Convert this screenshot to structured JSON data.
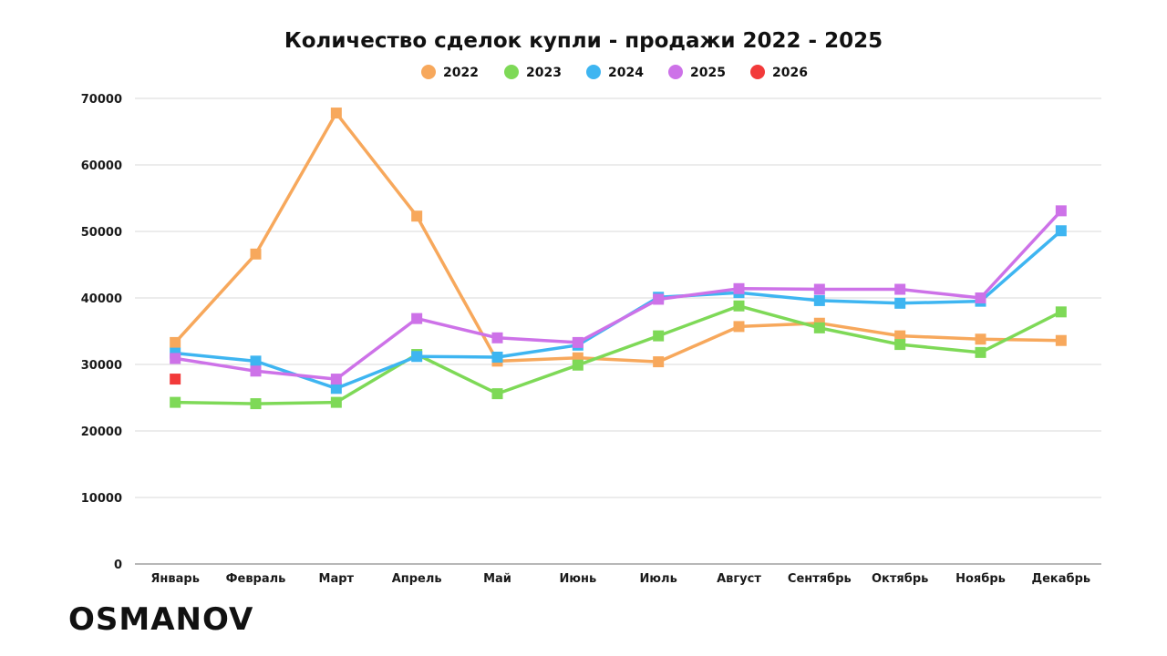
{
  "brand": "OSMANOV",
  "chart_data": {
    "type": "line",
    "title": "Количество сделок купли - продажи 2022 - 2025",
    "xlabel": "",
    "ylabel": "",
    "categories": [
      "Январь",
      "Февраль",
      "Март",
      "Апрель",
      "Май",
      "Июнь",
      "Июль",
      "Август",
      "Сентябрь",
      "Октябрь",
      "Ноябрь",
      "Декабрь"
    ],
    "ylim": [
      0,
      70000
    ],
    "yticks": [
      0,
      10000,
      20000,
      30000,
      40000,
      50000,
      60000,
      70000
    ],
    "grid": true,
    "legend_position": "top-center",
    "series": [
      {
        "name": "2022",
        "color": "#f7a85c",
        "values": [
          33300,
          46600,
          67800,
          52300,
          30500,
          31000,
          30400,
          35700,
          36200,
          34300,
          33800,
          33600
        ]
      },
      {
        "name": "2023",
        "color": "#7ed957",
        "values": [
          24300,
          24100,
          24300,
          31500,
          25600,
          29900,
          34300,
          38800,
          35500,
          33000,
          31800,
          37900
        ]
      },
      {
        "name": "2024",
        "color": "#3eb5f1",
        "values": [
          31700,
          30500,
          26400,
          31200,
          31100,
          32900,
          40100,
          40800,
          39600,
          39200,
          39500,
          50100
        ]
      },
      {
        "name": "2025",
        "color": "#cd72e8",
        "values": [
          30900,
          29000,
          27800,
          36900,
          34000,
          33300,
          39800,
          41400,
          41300,
          41300,
          40000,
          53100
        ]
      },
      {
        "name": "2026",
        "color": "#f23a3a",
        "values": [
          27800,
          null,
          null,
          null,
          null,
          null,
          null,
          null,
          null,
          null,
          null,
          null
        ]
      }
    ]
  }
}
